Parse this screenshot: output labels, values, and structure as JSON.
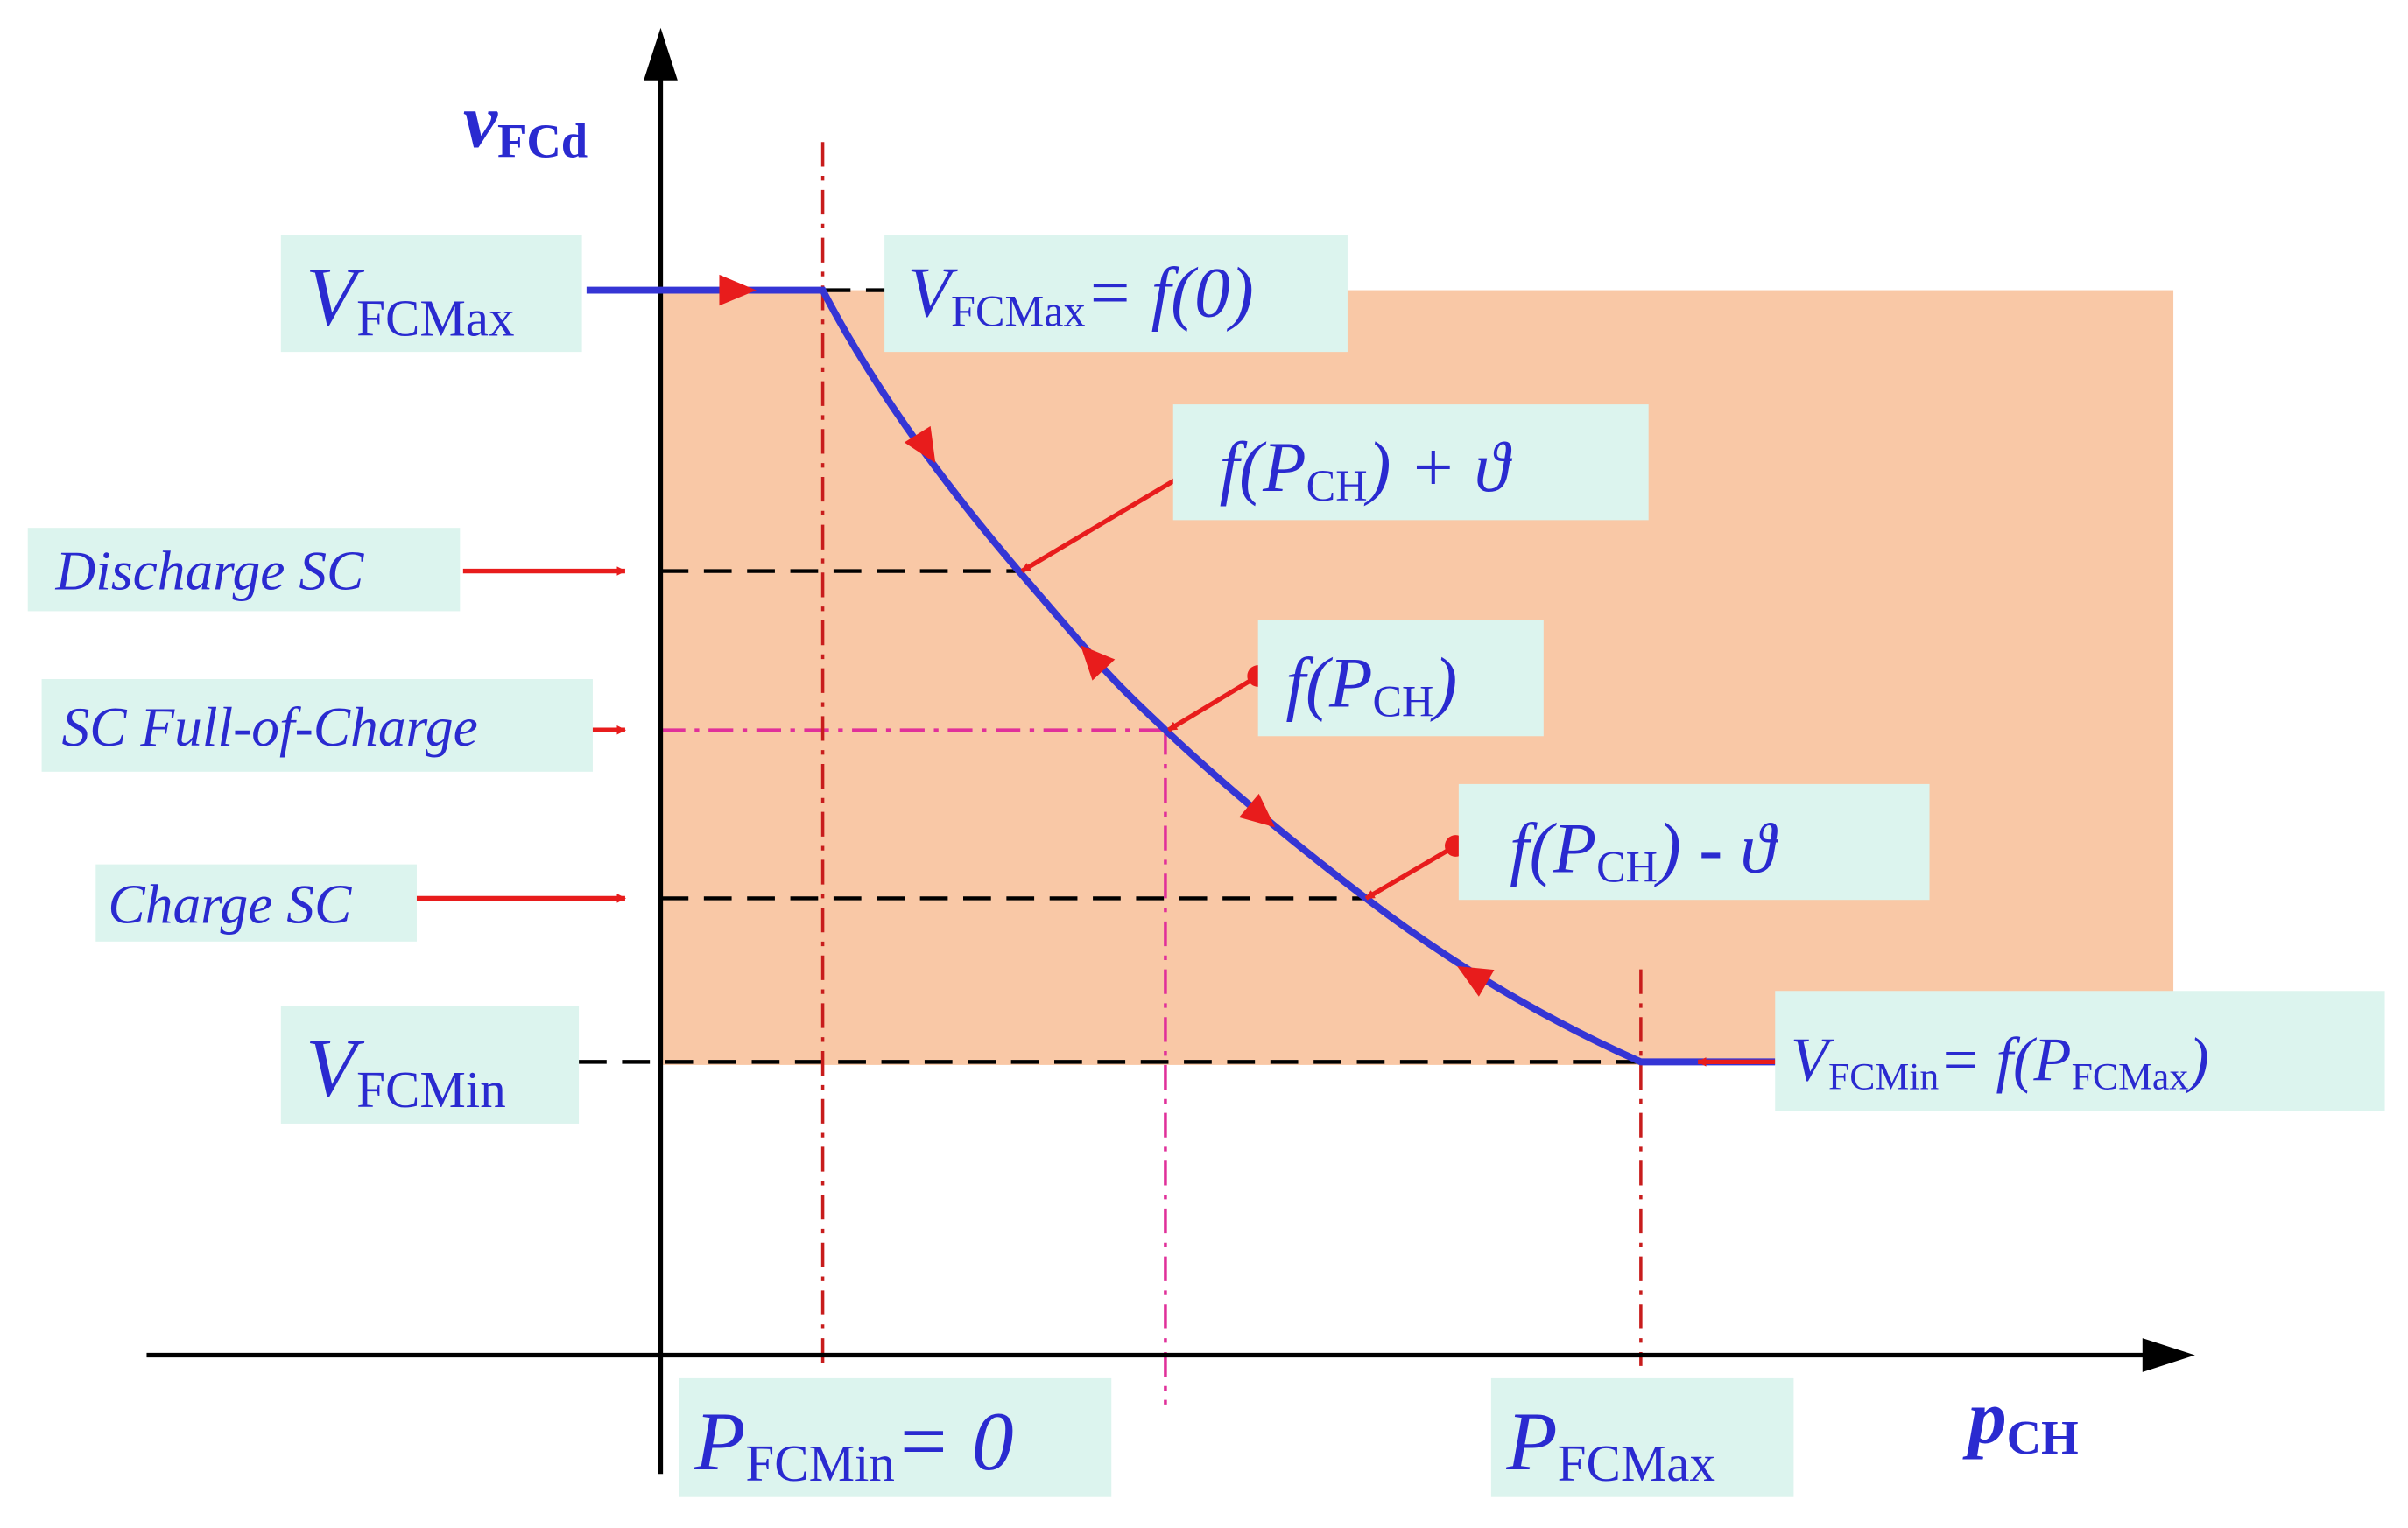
{
  "axes": {
    "y_label": [
      {
        "text": "v"
      },
      {
        "sub": "FCd"
      }
    ],
    "x_label": [
      {
        "text": "p"
      },
      {
        "sub": "CH"
      }
    ]
  },
  "labels": {
    "v_fc_max": [
      {
        "text": "V"
      },
      {
        "sub": "FCMax"
      }
    ],
    "v_fc_max_eq": [
      {
        "text": "V"
      },
      {
        "sub": "FCMax"
      },
      {
        "text": "= f(0)"
      }
    ],
    "f_plus": [
      {
        "text": "f("
      },
      {
        "text": "P"
      },
      {
        "sub": "CH"
      },
      {
        "text": ") + ϑ"
      }
    ],
    "discharge": [
      {
        "text": "Discharge SC"
      }
    ],
    "full_charge": [
      {
        "text": "SC Full-of-Charge"
      }
    ],
    "f_mid": [
      {
        "text": "f("
      },
      {
        "text": "P"
      },
      {
        "sub": "CH"
      },
      {
        "text": ")"
      }
    ],
    "f_minus": [
      {
        "text": "f("
      },
      {
        "text": "P"
      },
      {
        "sub": "CH"
      },
      {
        "text": ") - ϑ"
      }
    ],
    "charge": [
      {
        "text": "Charge SC"
      }
    ],
    "v_fc_min": [
      {
        "text": "V"
      },
      {
        "sub": "FCMin"
      }
    ],
    "v_fc_min_eq": [
      {
        "text": "V"
      },
      {
        "sub": "FCMin"
      },
      {
        "text": "= f("
      },
      {
        "text": "P"
      },
      {
        "sub": "FCMax"
      },
      {
        "text": ")"
      }
    ],
    "p_fc_min": [
      {
        "text": "P"
      },
      {
        "sub": "FCMin"
      },
      {
        "text": "= 0"
      }
    ],
    "p_fc_max": [
      {
        "text": "P"
      },
      {
        "sub": "FCMax"
      }
    ]
  }
}
